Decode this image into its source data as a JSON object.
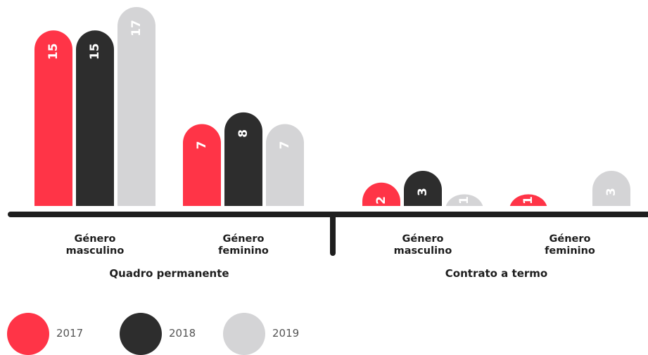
{
  "chart_data": {
    "type": "bar",
    "categories": [
      "Género masculino",
      "Género feminino",
      "Género masculino",
      "Género feminino"
    ],
    "groups": [
      "Quadro permanente",
      "Contrato a termo"
    ],
    "series": [
      {
        "name": "2017",
        "color": "#ff3447",
        "values": [
          15,
          7,
          2,
          1
        ]
      },
      {
        "name": "2018",
        "color": "#2d2d2d",
        "values": [
          15,
          8,
          3,
          null
        ]
      },
      {
        "name": "2019",
        "color": "#d4d4d6",
        "values": [
          17,
          7,
          1,
          3
        ]
      }
    ]
  }
}
